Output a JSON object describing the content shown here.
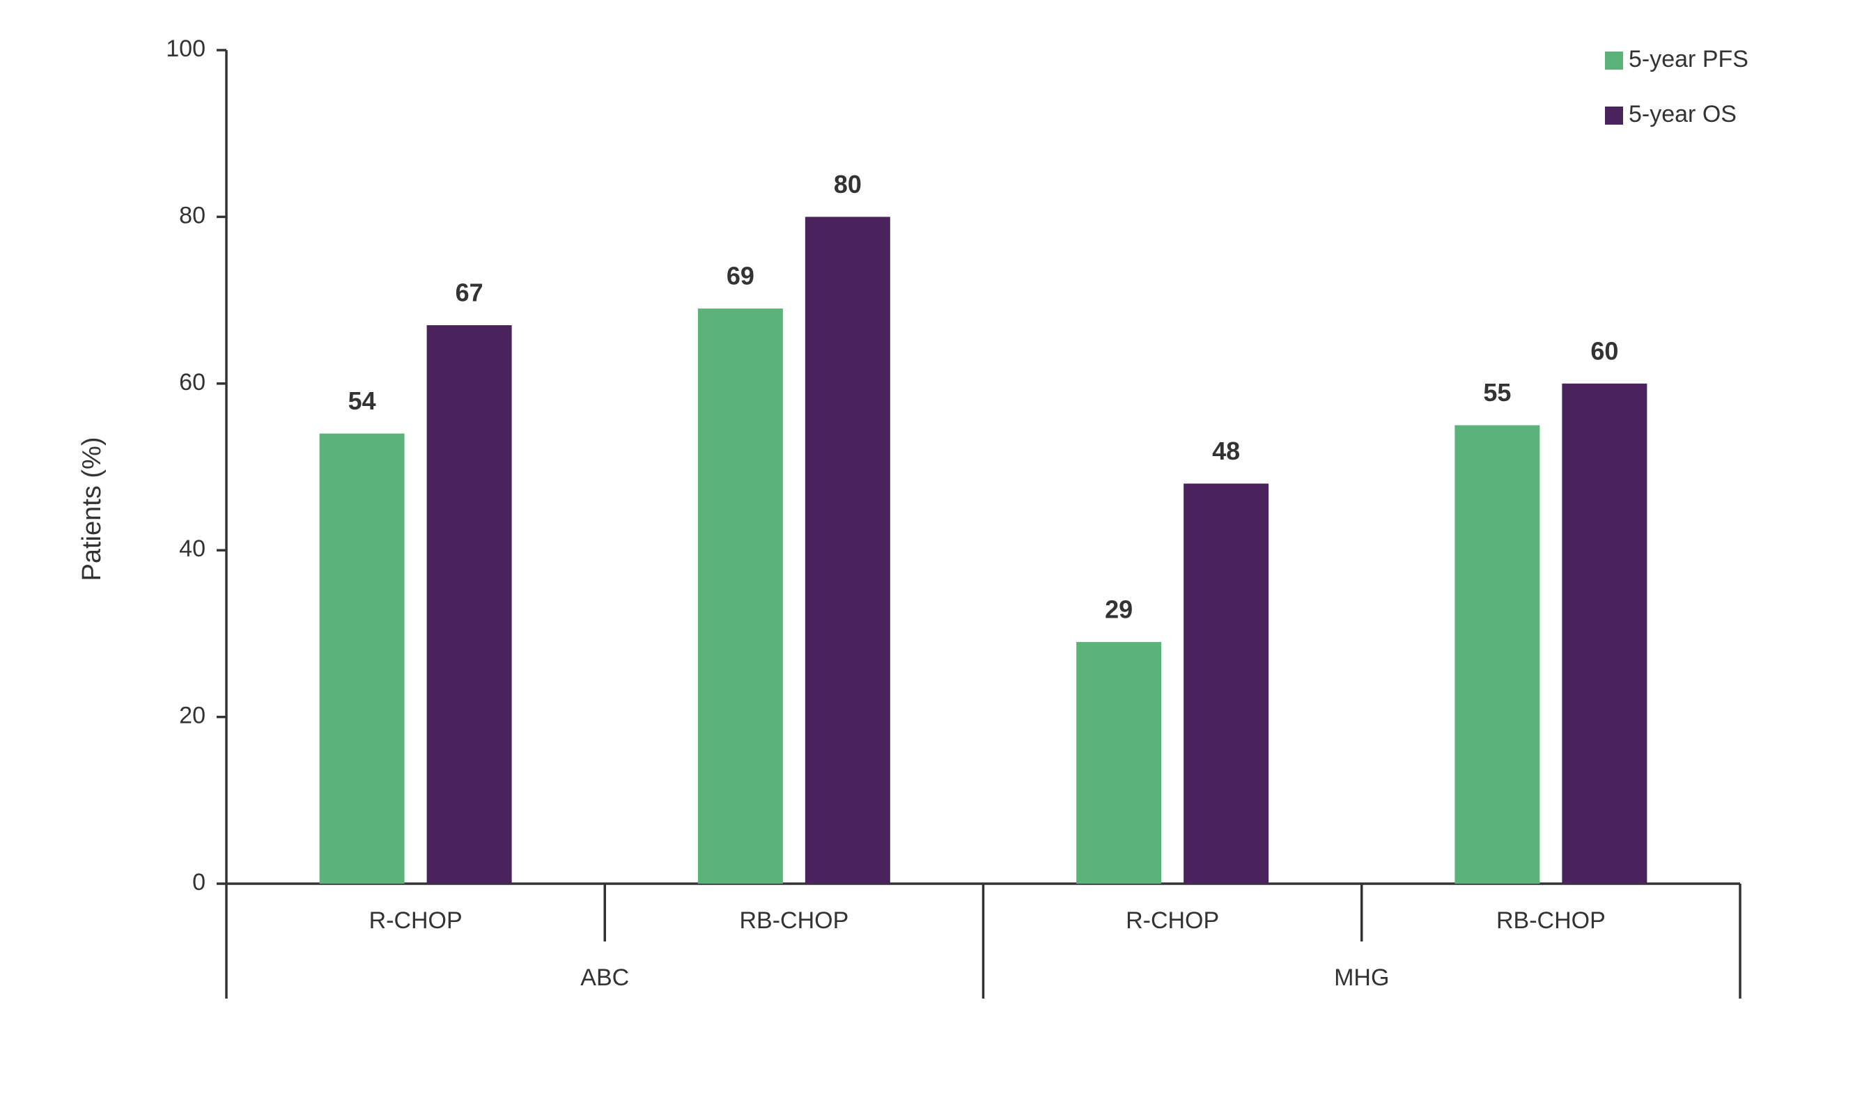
{
  "chart_data": {
    "type": "bar",
    "y_label": "Patients (%)",
    "groups": [
      {
        "name": "ABC",
        "categories": [
          "R-CHOP",
          "RB-CHOP"
        ]
      },
      {
        "name": "MHG",
        "categories": [
          "R-CHOP",
          "RB-CHOP"
        ]
      }
    ],
    "series": [
      {
        "name": "5-year PFS",
        "color": "#5bb37a",
        "values": [
          54,
          69,
          29,
          55
        ]
      },
      {
        "name": "5-year OS",
        "color": "#4a235c",
        "values": [
          67,
          80,
          48,
          60
        ]
      }
    ],
    "ylim": [
      0,
      100
    ],
    "yticks": [
      0,
      20,
      40,
      60,
      80,
      100
    ],
    "legend": "top-right"
  }
}
